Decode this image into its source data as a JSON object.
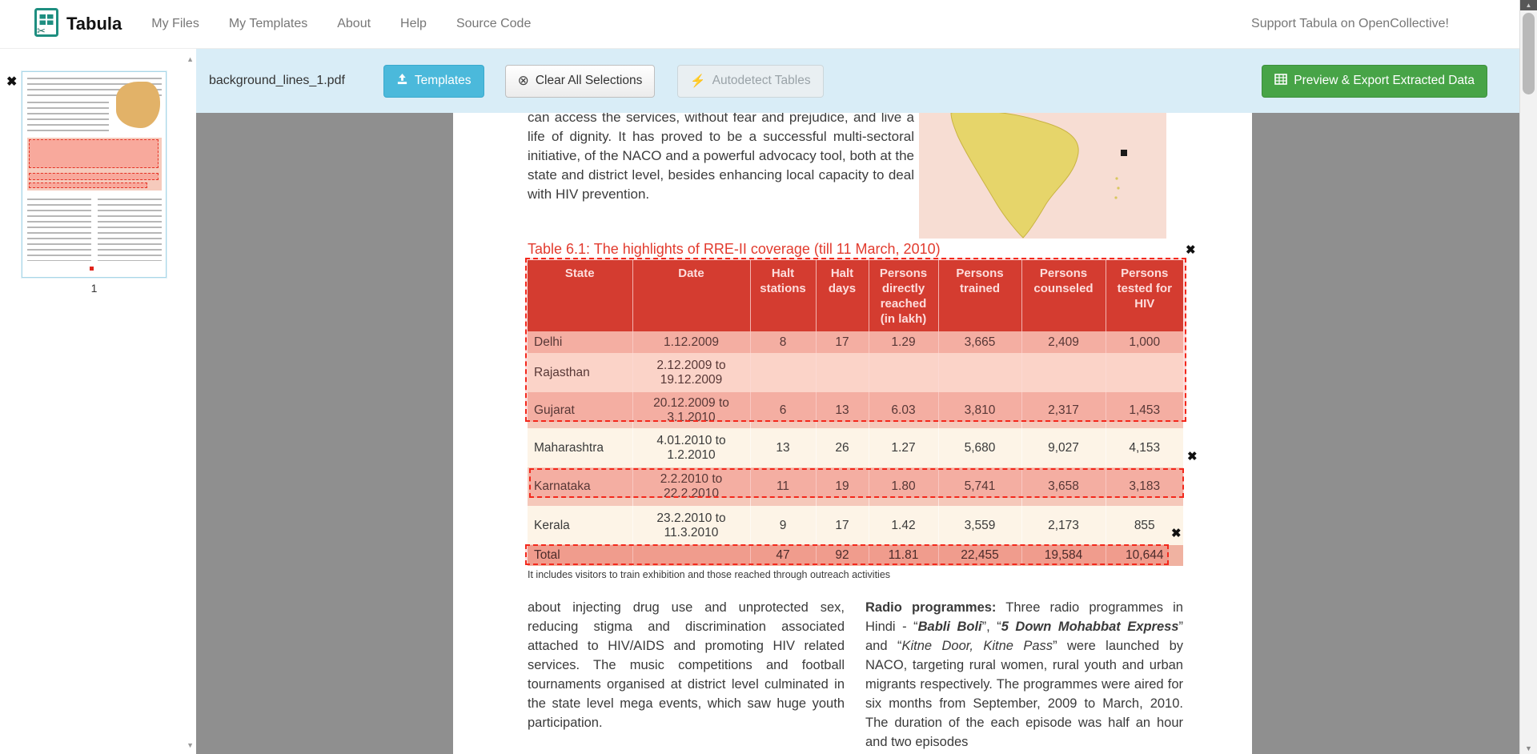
{
  "navbar": {
    "brand": "Tabula",
    "items": [
      "My Files",
      "My Templates",
      "About",
      "Help",
      "Source Code"
    ],
    "support_link": "Support Tabula on OpenCollective!"
  },
  "toolbar": {
    "filename": "background_lines_1.pdf",
    "templates_label": "Templates",
    "clear_label": "Clear All Selections",
    "clear_icon": "⊗",
    "autodetect_label": "Autodetect Tables",
    "autodetect_icon": "⚡",
    "export_label": "Preview & Export Extracted Data"
  },
  "sidebar": {
    "page_label": "1",
    "remove_icon": "✖",
    "scroll_up": "▲",
    "scroll_down": "▼"
  },
  "scrollbar": {
    "up": "▲",
    "down": "▼"
  },
  "selections": {
    "remove_icon": "✖"
  },
  "pdf": {
    "intro_paragraph": "can access the services, without fear and prejudice, and live a life of dignity. It has proved to be a successful multi-sectoral initiative, of the NACO and a powerful advocacy tool, both at the state and district level, besides enhancing local capacity to deal with HIV prevention.",
    "table_title": "Table 6.1: The highlights of RRE-II coverage (till 11 March, 2010)",
    "footnote": "It includes visitors to train exhibition and those reached through outreach activities",
    "left_column": "about injecting drug use and unprotected sex, reducing stigma and discrimination associated attached to HIV/AIDS and promoting HIV related services. The music competitions and football tournaments organised at district level culminated in the state level mega events, which saw huge youth participation.",
    "right_column": {
      "lead": "Radio programmes:",
      "s1": " Three radio programmes in Hindi - “",
      "i1": "Babli Boli",
      "s2": "”, “",
      "i2": "5 Down Mohabbat Express",
      "s3": "” and “",
      "i3": "Kitne Door, Kitne Pass",
      "s4": "” were launched by NACO, targeting rural women, rural youth and urban migrants respectively. The programmes were aired for six months from September, 2009 to March, 2010. The duration of the each episode was half an hour and two episodes"
    },
    "table": {
      "columns": [
        "State",
        "Date",
        "Halt stations",
        "Halt days",
        "Persons directly reached (in lakh)",
        "Persons trained",
        "Persons counseled",
        "Persons tested for HIV"
      ],
      "rows": [
        [
          "Delhi",
          "1.12.2009",
          "8",
          "17",
          "1.29",
          "3,665",
          "2,409",
          "1,000"
        ],
        [
          "Rajasthan",
          "2.12.2009 to 19.12.2009",
          "",
          "",
          "",
          "",
          "",
          ""
        ],
        [
          "Gujarat",
          "20.12.2009 to 3.1.2010",
          "6",
          "13",
          "6.03",
          "3,810",
          "2,317",
          "1,453"
        ],
        [
          "Maharashtra",
          "4.01.2010 to 1.2.2010",
          "13",
          "26",
          "1.27",
          "5,680",
          "9,027",
          "4,153"
        ],
        [
          "Karnataka",
          "2.2.2010 to 22.2.2010",
          "11",
          "19",
          "1.80",
          "5,741",
          "3,658",
          "3,183"
        ],
        [
          "Kerala",
          "23.2.2010 to 11.3.2010",
          "9",
          "17",
          "1.42",
          "3,559",
          "2,173",
          "855"
        ],
        [
          "Total",
          "",
          "47",
          "92",
          "11.81",
          "22,455",
          "19,584",
          "10,644"
        ]
      ]
    }
  },
  "colors": {
    "brand_green": "#1e8e80",
    "toolbar_bg": "#d9edf7",
    "btn_info": "#4bb9db",
    "btn_success": "#47a447",
    "sel_red": "#f3281c",
    "hdr_red": "#cf4033",
    "title_red": "#e23b2e",
    "row_salmon": "#f5c8ba",
    "row_cream": "#fdf4e7",
    "row_total": "#f0b2a1"
  }
}
